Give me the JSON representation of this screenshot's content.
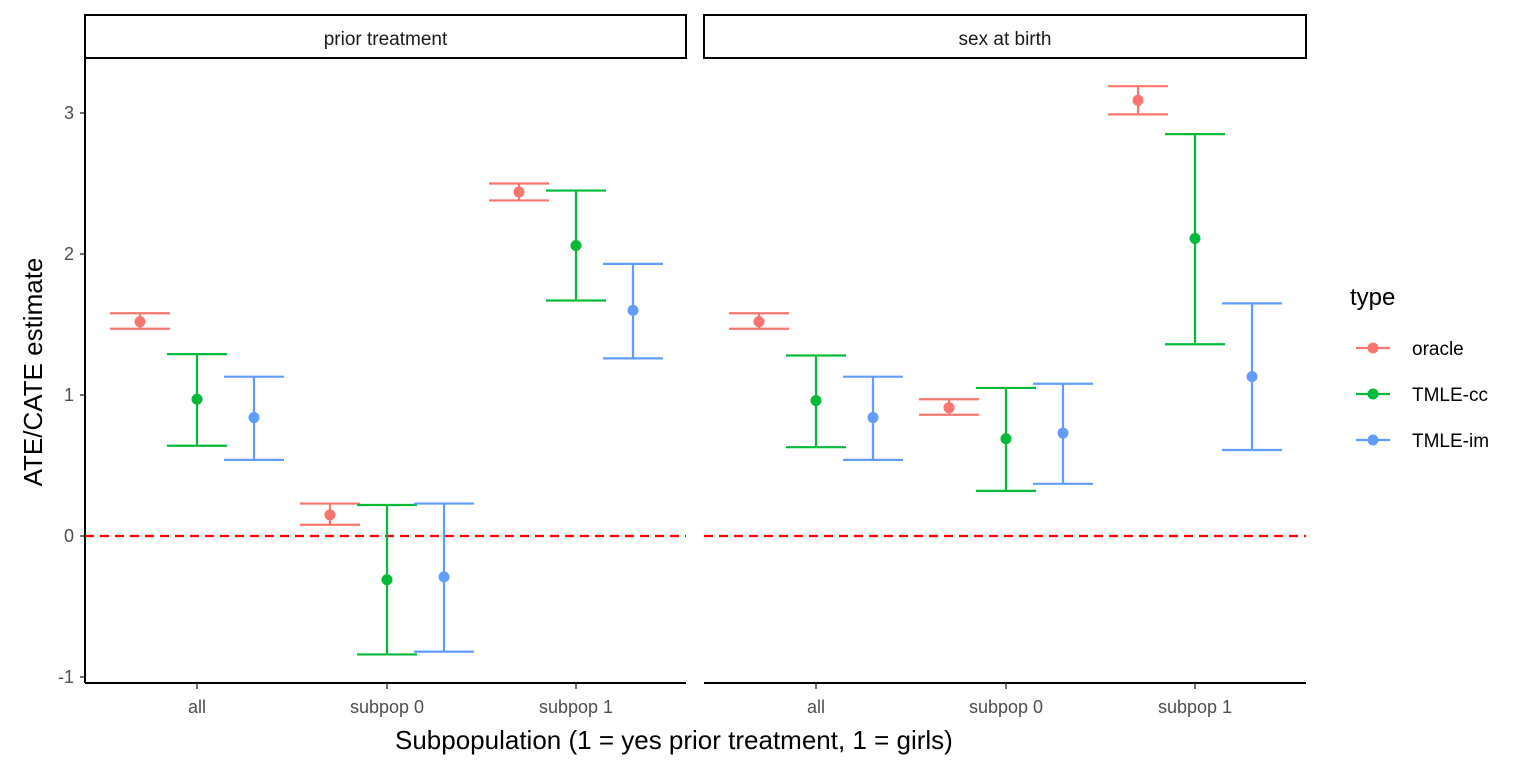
{
  "chart_data": {
    "type": "errorbar",
    "xlabel": "Subpopulation (1 = yes prior treatment, 1 = girls)",
    "ylabel": "ATE/CATE estimate",
    "ylim": [
      -1.05,
      3.4
    ],
    "yticks": [
      -1,
      0,
      1,
      2,
      3
    ],
    "reference_line": {
      "y": 0,
      "style": "dashed",
      "color": "#ff0000"
    },
    "categories": [
      "all",
      "subpop 0",
      "subpop 1"
    ],
    "legend": {
      "title": "type",
      "position": "right"
    },
    "series": [
      {
        "name": "oracle",
        "color": "#F8766D"
      },
      {
        "name": "TMLE-cc",
        "color": "#00BA38"
      },
      {
        "name": "TMLE-im",
        "color": "#619CFF"
      }
    ],
    "panels": [
      {
        "label": "prior treatment",
        "data": {
          "oracle": [
            {
              "est": 1.52,
              "lo": 1.47,
              "hi": 1.58
            },
            {
              "est": 0.15,
              "lo": 0.08,
              "hi": 0.23
            },
            {
              "est": 2.44,
              "lo": 2.38,
              "hi": 2.5
            }
          ],
          "TMLE-cc": [
            {
              "est": 0.97,
              "lo": 0.64,
              "hi": 1.29
            },
            {
              "est": -0.31,
              "lo": -0.84,
              "hi": 0.22
            },
            {
              "est": 2.06,
              "lo": 1.67,
              "hi": 2.45
            }
          ],
          "TMLE-im": [
            {
              "est": 0.84,
              "lo": 0.54,
              "hi": 1.13
            },
            {
              "est": -0.29,
              "lo": -0.82,
              "hi": 0.23
            },
            {
              "est": 1.6,
              "lo": 1.26,
              "hi": 1.93
            }
          ]
        }
      },
      {
        "label": "sex at birth",
        "data": {
          "oracle": [
            {
              "est": 1.52,
              "lo": 1.47,
              "hi": 1.58
            },
            {
              "est": 0.91,
              "lo": 0.86,
              "hi": 0.97
            },
            {
              "est": 3.09,
              "lo": 2.99,
              "hi": 3.19
            }
          ],
          "TMLE-cc": [
            {
              "est": 0.96,
              "lo": 0.63,
              "hi": 1.28
            },
            {
              "est": 0.69,
              "lo": 0.32,
              "hi": 1.05
            },
            {
              "est": 2.11,
              "lo": 1.36,
              "hi": 2.85
            }
          ],
          "TMLE-im": [
            {
              "est": 0.84,
              "lo": 0.54,
              "hi": 1.13
            },
            {
              "est": 0.73,
              "lo": 0.37,
              "hi": 1.08
            },
            {
              "est": 1.13,
              "lo": 0.61,
              "hi": 1.65
            }
          ]
        }
      }
    ]
  }
}
